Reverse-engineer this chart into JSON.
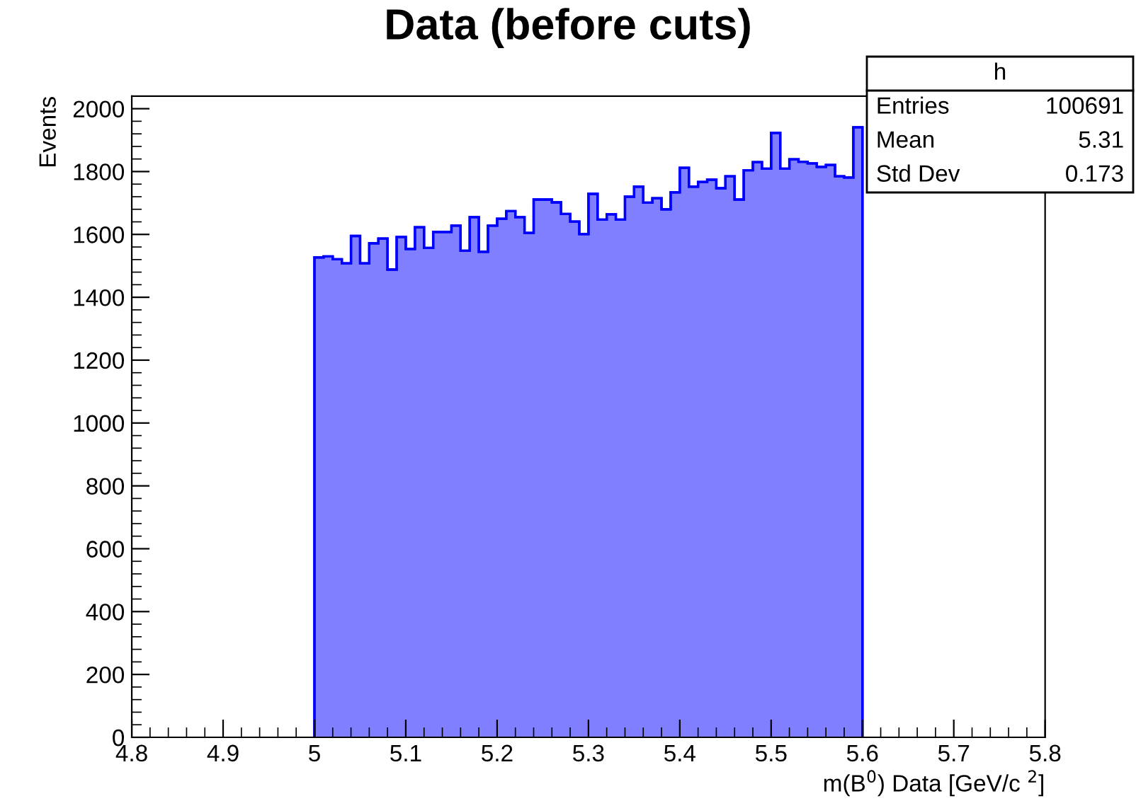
{
  "chart_data": {
    "type": "histogram",
    "title": "Data (before cuts)",
    "xlabel": "m(B$^{0}$) Data [GeV/c $^{2}$]",
    "ylabel": "Events",
    "bins": [
      5.0,
      5.01,
      5.02,
      5.03,
      5.04,
      5.05,
      5.06,
      5.07,
      5.08,
      5.09,
      5.1,
      5.11,
      5.12,
      5.13,
      5.14,
      5.15,
      5.16,
      5.17,
      5.18,
      5.19,
      5.2,
      5.21,
      5.22,
      5.23,
      5.24,
      5.25,
      5.26,
      5.27,
      5.28,
      5.29,
      5.3,
      5.31,
      5.32,
      5.33,
      5.34,
      5.35,
      5.36,
      5.37,
      5.38,
      5.39,
      5.4,
      5.41,
      5.42,
      5.43,
      5.44,
      5.45,
      5.46,
      5.47,
      5.48,
      5.49,
      5.5,
      5.51,
      5.52,
      5.53,
      5.54,
      5.55,
      5.56,
      5.57,
      5.58,
      5.59,
      5.6
    ],
    "values": [
      1527,
      1530,
      1521,
      1508,
      1595,
      1508,
      1572,
      1587,
      1488,
      1592,
      1554,
      1623,
      1557,
      1608,
      1608,
      1628,
      1548,
      1655,
      1545,
      1628,
      1650,
      1674,
      1655,
      1605,
      1711,
      1711,
      1702,
      1665,
      1641,
      1601,
      1729,
      1647,
      1664,
      1647,
      1720,
      1752,
      1701,
      1715,
      1680,
      1734,
      1812,
      1752,
      1767,
      1774,
      1747,
      1785,
      1711,
      1804,
      1830,
      1809,
      1923,
      1809,
      1839,
      1831,
      1826,
      1815,
      1821,
      1785,
      1781,
      1941
    ],
    "color": "#7f7fff",
    "xlim": [
      4.8,
      5.8
    ],
    "xticks": [
      4.8,
      4.9,
      5,
      5.1,
      5.2,
      5.3,
      5.4,
      5.5,
      5.6,
      5.7,
      5.8
    ],
    "ylim": [
      0,
      2040
    ],
    "yticks": [
      0,
      200,
      400,
      600,
      800,
      1000,
      1200,
      1400,
      1600,
      1800,
      2000
    ],
    "grid": false,
    "annotations": [
      "h",
      "Entries",
      "100691",
      "Mean",
      "5.31",
      "Std Dev",
      "0.173"
    ]
  }
}
